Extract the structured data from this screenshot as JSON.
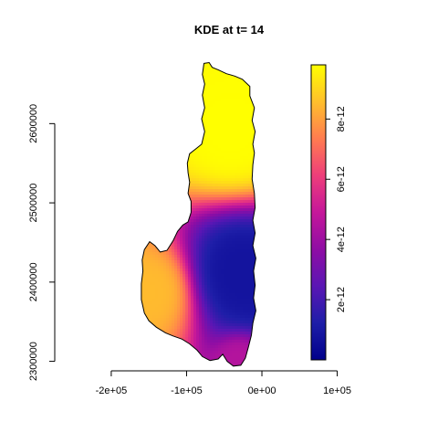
{
  "chart_data": {
    "type": "heatmap",
    "title": "KDE at t= 14",
    "xlabel": "",
    "ylabel": "",
    "xlim": [
      -275000,
      195000
    ],
    "ylim": [
      2288000,
      2688000
    ],
    "x_ticks": [
      {
        "value": -200000,
        "label": "-2e+05"
      },
      {
        "value": -100000,
        "label": "-1e+05"
      },
      {
        "value": 0,
        "label": "0e+00"
      },
      {
        "value": 100000,
        "label": "1e+05"
      }
    ],
    "y_ticks": [
      {
        "value": 2300000,
        "label": "2300000"
      },
      {
        "value": 2400000,
        "label": "2400000"
      },
      {
        "value": 2500000,
        "label": "2500000"
      },
      {
        "value": 2600000,
        "label": "2600000"
      }
    ],
    "colorbar": {
      "range": [
        0,
        9.8e-12
      ],
      "ticks": [
        {
          "value": 2e-12,
          "label": "2e-12"
        },
        {
          "value": 4e-12,
          "label": "4e-12"
        },
        {
          "value": 6e-12,
          "label": "6e-12"
        },
        {
          "value": 8e-12,
          "label": "8e-12"
        }
      ],
      "palette": [
        "#00008B",
        "#1E1EA8",
        "#5A16B4",
        "#8F0DA4",
        "#C5179A",
        "#EE3E7A",
        "#FF7C50",
        "#FFBF2C",
        "#FFFF00"
      ]
    },
    "region_outline": [
      [
        -77000,
        2676000
      ],
      [
        -70000,
        2677000
      ],
      [
        -66000,
        2671000
      ],
      [
        -58000,
        2668000
      ],
      [
        -47000,
        2663000
      ],
      [
        -36000,
        2660000
      ],
      [
        -26000,
        2656000
      ],
      [
        -16000,
        2647000
      ],
      [
        -16000,
        2635000
      ],
      [
        -10000,
        2620000
      ],
      [
        -13000,
        2604000
      ],
      [
        -9000,
        2590000
      ],
      [
        -12000,
        2574000
      ],
      [
        -10000,
        2563000
      ],
      [
        -12000,
        2548000
      ],
      [
        -13000,
        2530000
      ],
      [
        -10000,
        2512000
      ],
      [
        -9000,
        2494000
      ],
      [
        -12000,
        2478000
      ],
      [
        -9000,
        2462000
      ],
      [
        -12000,
        2446000
      ],
      [
        -8000,
        2430000
      ],
      [
        -11000,
        2414000
      ],
      [
        -9000,
        2396000
      ],
      [
        -11000,
        2380000
      ],
      [
        -8000,
        2364000
      ],
      [
        -12000,
        2348000
      ],
      [
        -14000,
        2333000
      ],
      [
        -18000,
        2318000
      ],
      [
        -22000,
        2304000
      ],
      [
        -28000,
        2295000
      ],
      [
        -38000,
        2294000
      ],
      [
        -46000,
        2300000
      ],
      [
        -52000,
        2309000
      ],
      [
        -58000,
        2303000
      ],
      [
        -69000,
        2301000
      ],
      [
        -79000,
        2306000
      ],
      [
        -86000,
        2314000
      ],
      [
        -96000,
        2322000
      ],
      [
        -106000,
        2328000
      ],
      [
        -118000,
        2332000
      ],
      [
        -128000,
        2336000
      ],
      [
        -140000,
        2343000
      ],
      [
        -150000,
        2351000
      ],
      [
        -156000,
        2361000
      ],
      [
        -160000,
        2378000
      ],
      [
        -160000,
        2398000
      ],
      [
        -158000,
        2414000
      ],
      [
        -159000,
        2428000
      ],
      [
        -156000,
        2441000
      ],
      [
        -149000,
        2451000
      ],
      [
        -142000,
        2446000
      ],
      [
        -135000,
        2438000
      ],
      [
        -126000,
        2440000
      ],
      [
        -118000,
        2452000
      ],
      [
        -112000,
        2464000
      ],
      [
        -105000,
        2472000
      ],
      [
        -98000,
        2476000
      ],
      [
        -94000,
        2488000
      ],
      [
        -94000,
        2502000
      ],
      [
        -98000,
        2512000
      ],
      [
        -96000,
        2526000
      ],
      [
        -98000,
        2538000
      ],
      [
        -99000,
        2550000
      ],
      [
        -96000,
        2562000
      ],
      [
        -88000,
        2568000
      ],
      [
        -80000,
        2574000
      ],
      [
        -76000,
        2590000
      ],
      [
        -80000,
        2606000
      ],
      [
        -76000,
        2620000
      ],
      [
        -79000,
        2636000
      ],
      [
        -76000,
        2650000
      ],
      [
        -79000,
        2662000
      ]
    ],
    "density_peaks": [
      {
        "x": -40000,
        "y": 2590000,
        "value": 9.8e-12,
        "spread": 40000
      },
      {
        "x": -148000,
        "y": 2388000,
        "value": 8.5e-12,
        "spread": 32000
      },
      {
        "x": -30000,
        "y": 2300000,
        "value": 4.5e-12,
        "spread": 18000
      },
      {
        "x": -28000,
        "y": 2412000,
        "value": 8e-13,
        "spread": 38000
      }
    ]
  }
}
